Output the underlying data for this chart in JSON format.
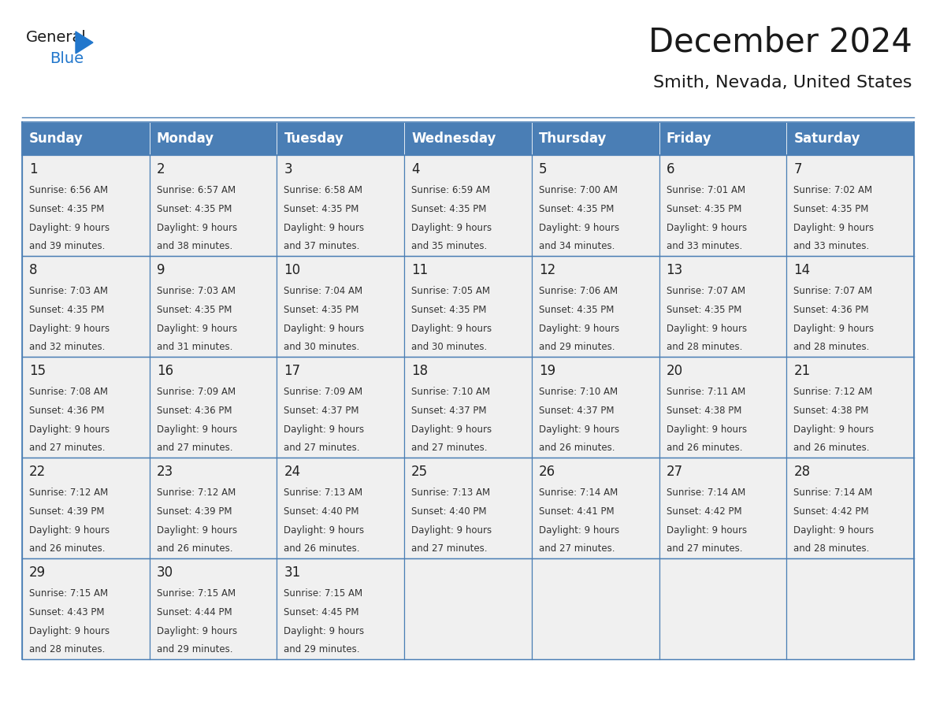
{
  "title": "December 2024",
  "subtitle": "Smith, Nevada, United States",
  "header_color": "#4a7eb5",
  "header_text_color": "#ffffff",
  "cell_bg_color": "#f0f0f0",
  "grid_line_color": "#4a7eb5",
  "day_number_color": "#222222",
  "cell_text_color": "#333333",
  "days_of_week": [
    "Sunday",
    "Monday",
    "Tuesday",
    "Wednesday",
    "Thursday",
    "Friday",
    "Saturday"
  ],
  "logo_general_color": "#1a1a1a",
  "logo_blue_color": "#2277cc",
  "weeks": [
    [
      {
        "day": 1,
        "sunrise": "6:56 AM",
        "sunset": "4:35 PM",
        "daylight": "9 hours and 39 minutes."
      },
      {
        "day": 2,
        "sunrise": "6:57 AM",
        "sunset": "4:35 PM",
        "daylight": "9 hours and 38 minutes."
      },
      {
        "day": 3,
        "sunrise": "6:58 AM",
        "sunset": "4:35 PM",
        "daylight": "9 hours and 37 minutes."
      },
      {
        "day": 4,
        "sunrise": "6:59 AM",
        "sunset": "4:35 PM",
        "daylight": "9 hours and 35 minutes."
      },
      {
        "day": 5,
        "sunrise": "7:00 AM",
        "sunset": "4:35 PM",
        "daylight": "9 hours and 34 minutes."
      },
      {
        "day": 6,
        "sunrise": "7:01 AM",
        "sunset": "4:35 PM",
        "daylight": "9 hours and 33 minutes."
      },
      {
        "day": 7,
        "sunrise": "7:02 AM",
        "sunset": "4:35 PM",
        "daylight": "9 hours and 33 minutes."
      }
    ],
    [
      {
        "day": 8,
        "sunrise": "7:03 AM",
        "sunset": "4:35 PM",
        "daylight": "9 hours and 32 minutes."
      },
      {
        "day": 9,
        "sunrise": "7:03 AM",
        "sunset": "4:35 PM",
        "daylight": "9 hours and 31 minutes."
      },
      {
        "day": 10,
        "sunrise": "7:04 AM",
        "sunset": "4:35 PM",
        "daylight": "9 hours and 30 minutes."
      },
      {
        "day": 11,
        "sunrise": "7:05 AM",
        "sunset": "4:35 PM",
        "daylight": "9 hours and 30 minutes."
      },
      {
        "day": 12,
        "sunrise": "7:06 AM",
        "sunset": "4:35 PM",
        "daylight": "9 hours and 29 minutes."
      },
      {
        "day": 13,
        "sunrise": "7:07 AM",
        "sunset": "4:35 PM",
        "daylight": "9 hours and 28 minutes."
      },
      {
        "day": 14,
        "sunrise": "7:07 AM",
        "sunset": "4:36 PM",
        "daylight": "9 hours and 28 minutes."
      }
    ],
    [
      {
        "day": 15,
        "sunrise": "7:08 AM",
        "sunset": "4:36 PM",
        "daylight": "9 hours and 27 minutes."
      },
      {
        "day": 16,
        "sunrise": "7:09 AM",
        "sunset": "4:36 PM",
        "daylight": "9 hours and 27 minutes."
      },
      {
        "day": 17,
        "sunrise": "7:09 AM",
        "sunset": "4:37 PM",
        "daylight": "9 hours and 27 minutes."
      },
      {
        "day": 18,
        "sunrise": "7:10 AM",
        "sunset": "4:37 PM",
        "daylight": "9 hours and 27 minutes."
      },
      {
        "day": 19,
        "sunrise": "7:10 AM",
        "sunset": "4:37 PM",
        "daylight": "9 hours and 26 minutes."
      },
      {
        "day": 20,
        "sunrise": "7:11 AM",
        "sunset": "4:38 PM",
        "daylight": "9 hours and 26 minutes."
      },
      {
        "day": 21,
        "sunrise": "7:12 AM",
        "sunset": "4:38 PM",
        "daylight": "9 hours and 26 minutes."
      }
    ],
    [
      {
        "day": 22,
        "sunrise": "7:12 AM",
        "sunset": "4:39 PM",
        "daylight": "9 hours and 26 minutes."
      },
      {
        "day": 23,
        "sunrise": "7:12 AM",
        "sunset": "4:39 PM",
        "daylight": "9 hours and 26 minutes."
      },
      {
        "day": 24,
        "sunrise": "7:13 AM",
        "sunset": "4:40 PM",
        "daylight": "9 hours and 26 minutes."
      },
      {
        "day": 25,
        "sunrise": "7:13 AM",
        "sunset": "4:40 PM",
        "daylight": "9 hours and 27 minutes."
      },
      {
        "day": 26,
        "sunrise": "7:14 AM",
        "sunset": "4:41 PM",
        "daylight": "9 hours and 27 minutes."
      },
      {
        "day": 27,
        "sunrise": "7:14 AM",
        "sunset": "4:42 PM",
        "daylight": "9 hours and 27 minutes."
      },
      {
        "day": 28,
        "sunrise": "7:14 AM",
        "sunset": "4:42 PM",
        "daylight": "9 hours and 28 minutes."
      }
    ],
    [
      {
        "day": 29,
        "sunrise": "7:15 AM",
        "sunset": "4:43 PM",
        "daylight": "9 hours and 28 minutes."
      },
      {
        "day": 30,
        "sunrise": "7:15 AM",
        "sunset": "4:44 PM",
        "daylight": "9 hours and 29 minutes."
      },
      {
        "day": 31,
        "sunrise": "7:15 AM",
        "sunset": "4:45 PM",
        "daylight": "9 hours and 29 minutes."
      },
      null,
      null,
      null,
      null
    ]
  ],
  "figsize": [
    11.88,
    9.18
  ],
  "dpi": 100
}
